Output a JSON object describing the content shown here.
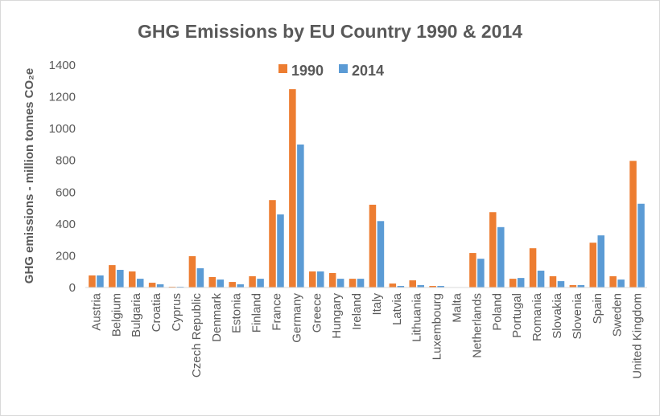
{
  "chart_data": {
    "type": "bar",
    "title": "GHG Emissions by EU Country 1990 & 2014",
    "xlabel": "",
    "ylabel": "GHG emissions - million tonnes CO₂e",
    "ylim": [
      0,
      1400
    ],
    "yticks": [
      0,
      200,
      400,
      600,
      800,
      1000,
      1200,
      1400
    ],
    "grid": false,
    "legend_position": "top-center",
    "categories": [
      "Austria",
      "Belgium",
      "Bulgaria",
      "Croatia",
      "Cyprus",
      "Czech Republic",
      "Denmark",
      "Estonia",
      "Finland",
      "France",
      "Germany",
      "Greece",
      "Hungary",
      "Ireland",
      "Italy",
      "Latvia",
      "Lithuania",
      "Luxembourg",
      "Malta",
      "Netherlands",
      "Poland",
      "Portugal",
      "Romania",
      "Slovakia",
      "Slovenia",
      "Spain",
      "Sweden",
      "United Kingdom"
    ],
    "series": [
      {
        "name": "1990",
        "color": "#ED7D31",
        "values": [
          76,
          141,
          101,
          30,
          5,
          197,
          66,
          35,
          71,
          550,
          1248,
          101,
          91,
          55,
          521,
          25,
          45,
          10,
          2,
          217,
          474,
          55,
          247,
          71,
          15,
          282,
          71,
          797
        ]
      },
      {
        "name": "2014",
        "color": "#5B9BD5",
        "values": [
          76,
          111,
          55,
          20,
          5,
          121,
          50,
          20,
          55,
          460,
          900,
          101,
          55,
          55,
          418,
          10,
          15,
          10,
          2,
          181,
          380,
          60,
          106,
          40,
          15,
          328,
          50,
          527
        ]
      }
    ]
  }
}
